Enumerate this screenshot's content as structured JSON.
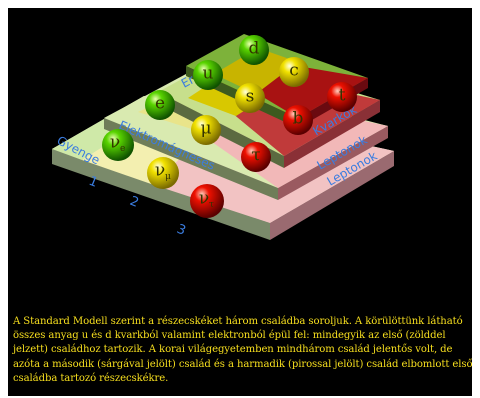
{
  "scene": {
    "steps": {
      "eros": "Erős",
      "elektromagneses": "Elektromágneses",
      "gyenge": "Gyenge",
      "kvarkok": "Kvarkok",
      "leptonok_1": "Leptonok",
      "leptonok_2": "Leptonok"
    },
    "families": [
      "1",
      "2",
      "3"
    ],
    "particles": [
      {
        "name": "d",
        "color": "#2ea100",
        "family": 1
      },
      {
        "name": "u",
        "color": "#2ea100",
        "family": 1
      },
      {
        "name": "e",
        "color": "#2ea100",
        "family": 1
      },
      {
        "name": "ν",
        "sub": "e",
        "color": "#2ea100",
        "family": 1
      },
      {
        "name": "c",
        "color": "#e6d200",
        "family": 2
      },
      {
        "name": "s",
        "color": "#e6d200",
        "family": 2
      },
      {
        "name": "μ",
        "color": "#e6d200",
        "family": 2
      },
      {
        "name": "ν",
        "sub": "μ",
        "color": "#e6d200",
        "family": 2
      },
      {
        "name": "t",
        "color": "#e20000",
        "family": 3
      },
      {
        "name": "b",
        "color": "#e20000",
        "family": 3
      },
      {
        "name": "τ",
        "color": "#e20000",
        "family": 3
      },
      {
        "name": "ν",
        "sub": "τ",
        "color": "#e20000",
        "family": 3
      }
    ]
  },
  "caption": "A Standard Modell szerint a részecskéket három családba soroljuk. A körülöttünk látható összes anyag u és d kvarkból valamint elektronból épül fel: mindegyik az első (zölddel jelzett) családhoz tartozik. A korai világegyetemben mindhárom család jelentős volt, de azóta a második (sárgával jelölt) család és a harmadik (pirossal jelölt) család elbomlott első családba tartozó részecskékre."
}
